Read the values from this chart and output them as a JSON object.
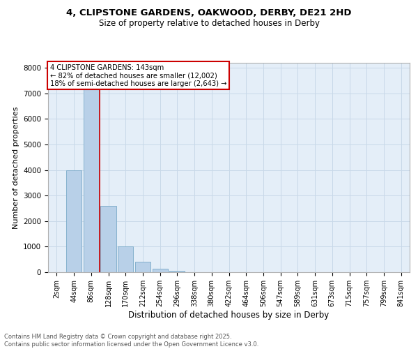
{
  "title_line1": "4, CLIPSTONE GARDENS, OAKWOOD, DERBY, DE21 2HD",
  "title_line2": "Size of property relative to detached houses in Derby",
  "xlabel": "Distribution of detached houses by size in Derby",
  "ylabel": "Number of detached properties",
  "categories": [
    "2sqm",
    "44sqm",
    "86sqm",
    "128sqm",
    "170sqm",
    "212sqm",
    "254sqm",
    "296sqm",
    "338sqm",
    "380sqm",
    "422sqm",
    "464sqm",
    "506sqm",
    "547sqm",
    "589sqm",
    "631sqm",
    "673sqm",
    "715sqm",
    "757sqm",
    "799sqm",
    "841sqm"
  ],
  "values": [
    0,
    4000,
    7300,
    2600,
    1000,
    400,
    150,
    50,
    5,
    2,
    0,
    0,
    0,
    0,
    0,
    0,
    0,
    0,
    0,
    0,
    0
  ],
  "bar_color": "#b8d0e8",
  "bar_edge_color": "#7aaac8",
  "red_line_x": 2.5,
  "red_line_label": "4 CLIPSTONE GARDENS: 143sqm",
  "annotation_line2": "← 82% of detached houses are smaller (12,002)",
  "annotation_line3": "18% of semi-detached houses are larger (2,643) →",
  "annotation_box_color": "#ffffff",
  "annotation_box_edge": "#cc0000",
  "ylim": [
    0,
    8200
  ],
  "yticks": [
    0,
    1000,
    2000,
    3000,
    4000,
    5000,
    6000,
    7000,
    8000
  ],
  "grid_color": "#c8d8e8",
  "background_color": "#e4eef8",
  "footer_line1": "Contains HM Land Registry data © Crown copyright and database right 2025.",
  "footer_line2": "Contains public sector information licensed under the Open Government Licence v3.0."
}
